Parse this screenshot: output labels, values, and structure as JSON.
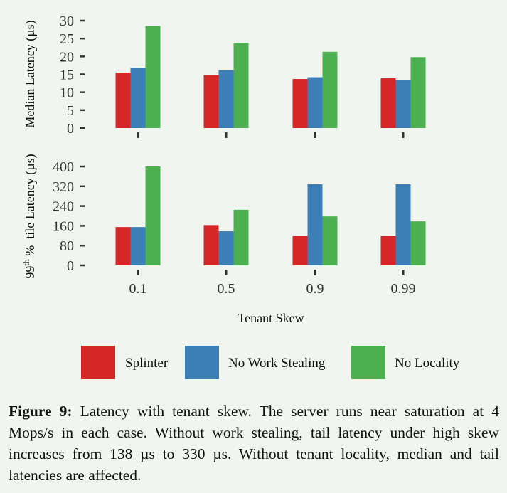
{
  "chart_data": [
    {
      "type": "bar",
      "ylabel": "Median Latency (µs)",
      "categories": [
        "0.1",
        "0.5",
        "0.9",
        "0.99"
      ],
      "yticks": [
        "0",
        "5",
        "10",
        "15",
        "20",
        "25",
        "30"
      ],
      "ylim": [
        0,
        30
      ],
      "series": [
        {
          "name": "Splinter",
          "values": [
            15.5,
            14.8,
            13.7,
            13.9
          ]
        },
        {
          "name": "No Work Stealing",
          "values": [
            16.8,
            16.1,
            14.2,
            13.5
          ]
        },
        {
          "name": "No Locality",
          "values": [
            28.5,
            23.8,
            21.3,
            19.8
          ]
        }
      ]
    },
    {
      "type": "bar",
      "ylabel_prefix": "99",
      "ylabel_sup": "th",
      "ylabel": " %–tile Latency (µs)",
      "xlabel": "Tenant Skew",
      "categories": [
        "0.1",
        "0.5",
        "0.9",
        "0.99"
      ],
      "yticks": [
        "0",
        "80",
        "160",
        "240",
        "320",
        "400"
      ],
      "ylim": [
        0,
        400
      ],
      "series": [
        {
          "name": "Splinter",
          "values": [
            155,
            163,
            118,
            118
          ]
        },
        {
          "name": "No Work Stealing",
          "values": [
            155,
            138,
            328,
            328
          ]
        },
        {
          "name": "No Locality",
          "values": [
            400,
            225,
            198,
            178
          ]
        }
      ]
    }
  ],
  "legend": [
    {
      "label": "Splinter",
      "color": "#d62728"
    },
    {
      "label": "No Work Stealing",
      "color": "#3b7fb6"
    },
    {
      "label": "No Locality",
      "color": "#4caf50"
    }
  ],
  "caption": {
    "label": "Figure 9:",
    "text": " Latency with tenant skew.  The server runs near saturation at 4 Mops/s in each case.  Without work stealing, tail latency under high skew increases from 138 µs to 330 µs. Without tenant locality, median and tail latencies are affected."
  }
}
